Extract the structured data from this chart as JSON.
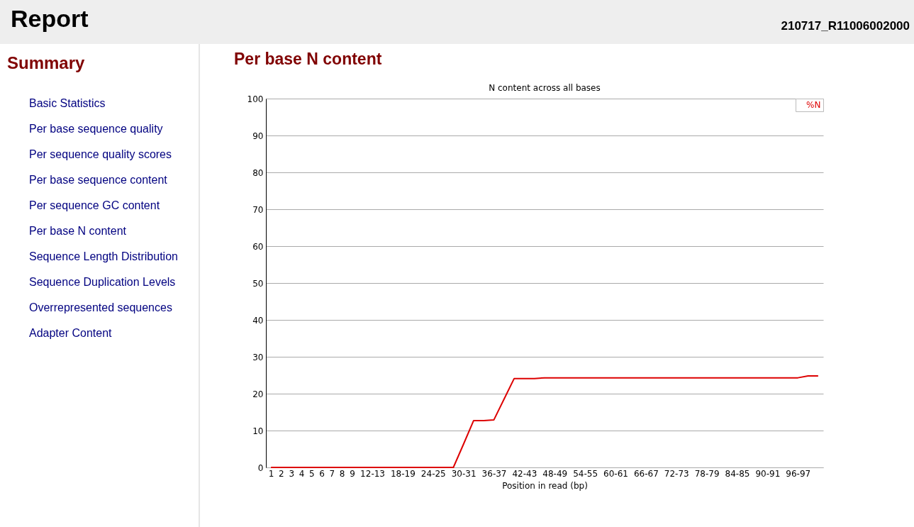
{
  "chart_data": [
    {
      "type": "other",
      "title": "Report",
      "annotations": [
        "210717_R11006002000"
      ]
    },
    {
      "type": "other",
      "title": "Summary",
      "annotations": [
        "Basic Statistics",
        "Per base sequence quality",
        "Per sequence quality scores",
        "Per base sequence content",
        "Per sequence GC content",
        "Per base N content",
        "Sequence Length Distribution",
        "Sequence Duplication Levels",
        "Overrepresented sequences",
        "Adapter Content"
      ]
    },
    {
      "type": "line",
      "title": "Per base N content",
      "subtitle": "N content across all bases",
      "xlabel": "Position in read (bp)",
      "categories": [
        "1",
        "2",
        "3",
        "4",
        "5",
        "6",
        "7",
        "8",
        "9",
        null,
        "12-13",
        null,
        null,
        "18-19",
        null,
        null,
        "24-25",
        null,
        null,
        "30-31",
        null,
        null,
        "36-37",
        null,
        null,
        "42-43",
        null,
        null,
        "48-49",
        null,
        null,
        "54-55",
        null,
        null,
        "60-61",
        null,
        null,
        "66-67",
        null,
        null,
        "72-73",
        null,
        null,
        "78-79",
        null,
        null,
        "84-85",
        null,
        null,
        "90-91",
        null,
        null,
        "96-97",
        null,
        null
      ],
      "series": [
        {
          "name": "%N",
          "color": "#dd0000",
          "values": [
            0,
            0,
            0,
            0,
            0,
            0,
            0,
            0,
            0,
            0,
            0,
            0,
            0,
            0,
            0,
            0,
            0,
            0,
            0,
            6.3,
            12.7,
            12.7,
            12.9,
            18.5,
            24.1,
            24.1,
            24.1,
            24.3,
            24.3,
            24.3,
            24.3,
            24.3,
            24.3,
            24.3,
            24.3,
            24.3,
            24.3,
            24.3,
            24.3,
            24.3,
            24.3,
            24.3,
            24.3,
            24.3,
            24.3,
            24.3,
            24.3,
            24.3,
            24.3,
            24.3,
            24.3,
            24.3,
            24.3,
            24.8,
            24.8
          ]
        }
      ],
      "ylim": [
        0,
        100
      ],
      "yticks": [
        0,
        10,
        20,
        30,
        40,
        50,
        60,
        70,
        80,
        90,
        100
      ],
      "grid": "y",
      "legend": "top right"
    }
  ]
}
